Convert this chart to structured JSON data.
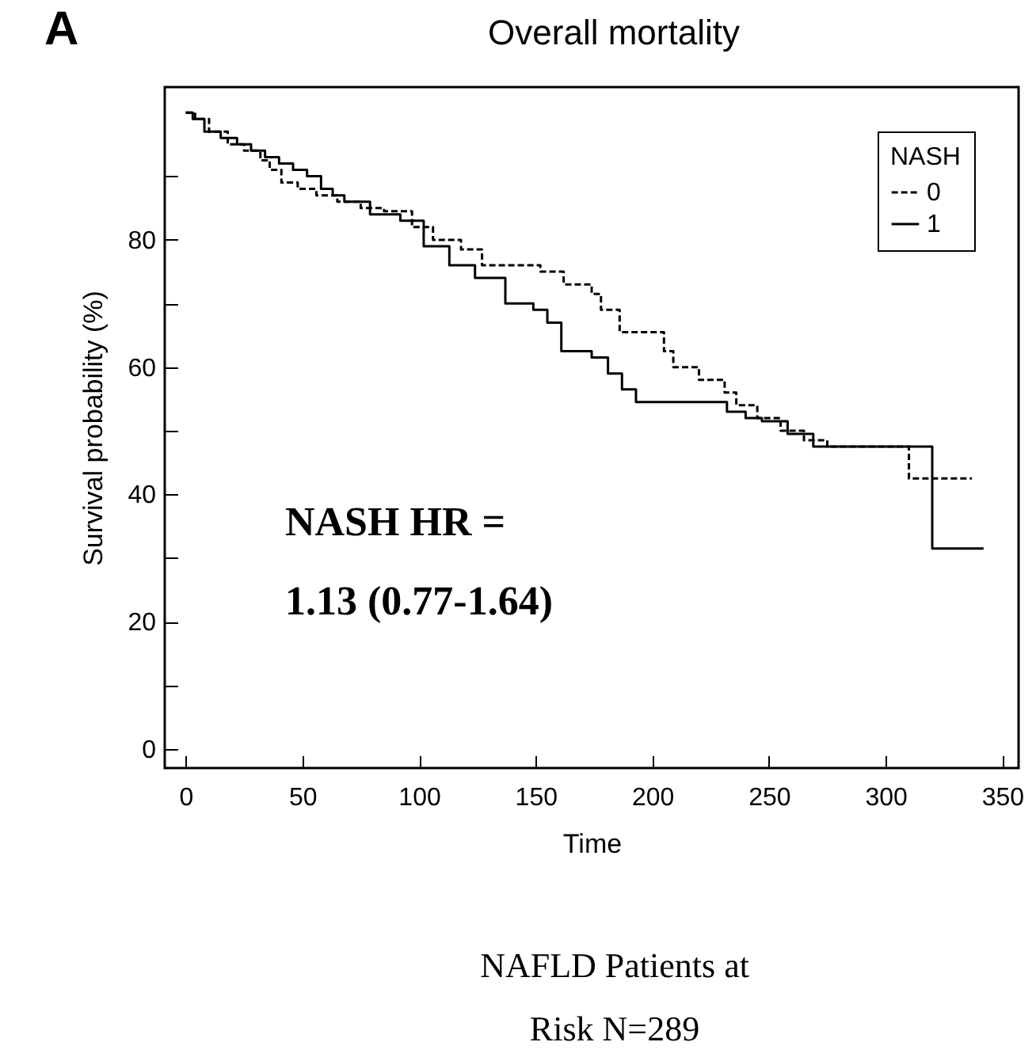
{
  "chart_data": {
    "type": "step",
    "title": "Overall mortality",
    "xlabel": "Time",
    "ylabel": "Survival probability (%)",
    "legend_title": "NASH",
    "annotations": [
      "A",
      "NASH HR =",
      "1.13 (0.77-1.64)",
      "NAFLD Patients at",
      "Risk N=289"
    ],
    "xlim": [
      -9,
      357
    ],
    "ylim": [
      -3,
      104
    ],
    "xticks": [
      0,
      50,
      100,
      150,
      200,
      250,
      300,
      350
    ],
    "yticks": [
      0,
      {
        "value": 10,
        "label": null
      },
      20,
      {
        "value": 30,
        "label": null
      },
      40,
      {
        "value": 50,
        "label": null
      },
      60,
      {
        "value": 70,
        "label": null
      },
      80,
      {
        "value": 90,
        "label": null
      }
    ],
    "grid": false,
    "legend": "top right",
    "marker": "none",
    "series": [
      {
        "name": "0",
        "color": "#000000",
        "line_style": "dashed",
        "x": [
          0,
          4,
          10,
          18,
          25,
          32,
          36,
          41,
          48,
          56,
          65,
          75,
          85,
          97,
          106,
          118,
          127,
          152,
          162,
          174,
          178,
          186,
          205,
          209,
          220,
          231,
          236,
          245,
          255,
          265,
          275,
          310,
          337
        ],
        "values": [
          100,
          99,
          97,
          95,
          94,
          92.5,
          91,
          89,
          88,
          87,
          86,
          85,
          84.5,
          82,
          80,
          78.5,
          76,
          75,
          73,
          71.5,
          69,
          65.5,
          62.5,
          60,
          58,
          56,
          54,
          52,
          50,
          48.5,
          47.5,
          42.5,
          42.5
        ]
      },
      {
        "name": "1",
        "color": "#000000",
        "line_style": "solid",
        "x": [
          0,
          3,
          8,
          15,
          22,
          28,
          34,
          40,
          46,
          52,
          58,
          63,
          68,
          79,
          92,
          102,
          113,
          124,
          137,
          149,
          155,
          161,
          174,
          181,
          187,
          193,
          232,
          240,
          247,
          258,
          269,
          320,
          342
        ],
        "values": [
          100,
          99,
          97,
          96,
          95,
          94,
          93,
          92,
          91,
          90,
          88,
          87,
          86,
          84,
          83,
          79,
          76,
          74,
          70,
          69,
          67,
          62.5,
          61.5,
          59,
          56.5,
          54.5,
          53,
          52,
          51.5,
          49.5,
          47.5,
          31.5,
          31.5
        ]
      }
    ]
  }
}
